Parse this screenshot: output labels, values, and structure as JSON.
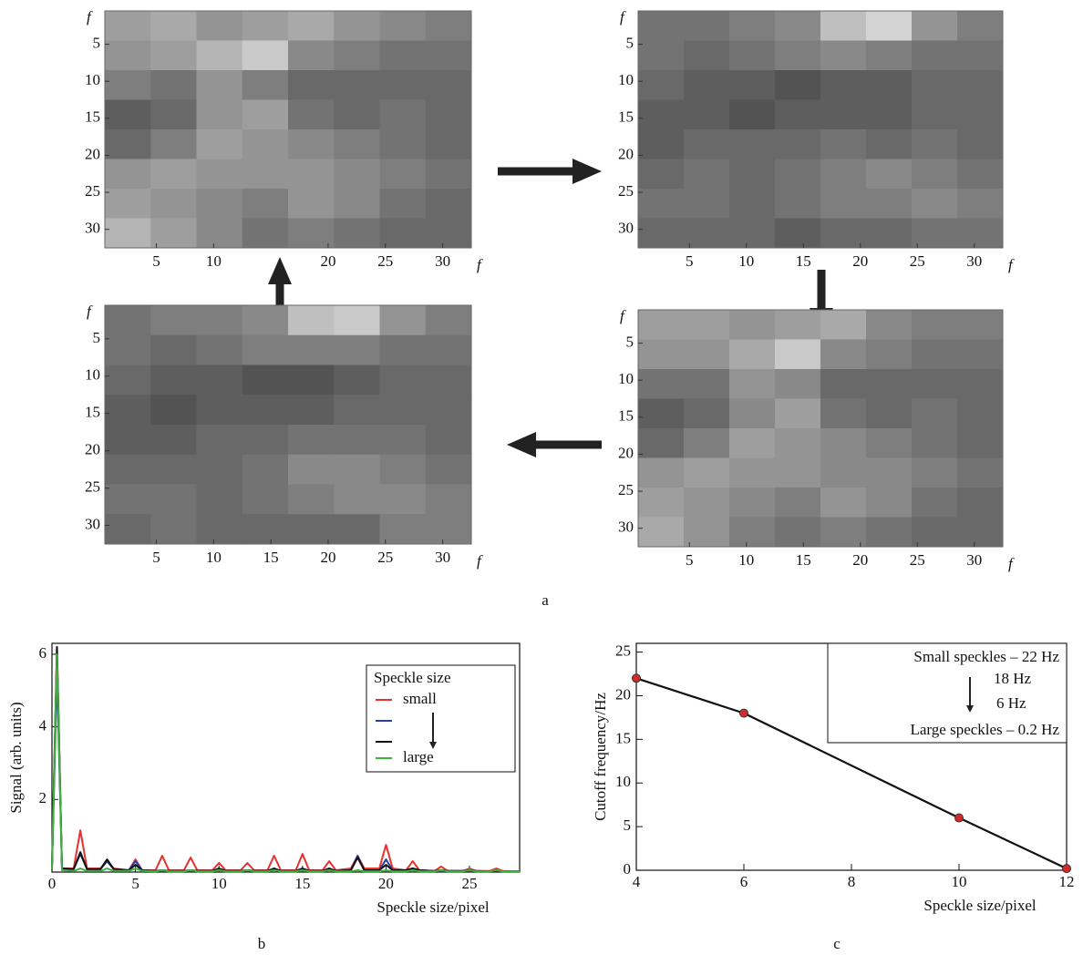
{
  "captions": [
    "a",
    "b",
    "c"
  ],
  "chart_data": [
    {
      "type": "heatmap",
      "xlabel": "f",
      "ylabel": "f",
      "xlim": [
        0.5,
        32.5
      ],
      "ylim": [
        0.5,
        32.5
      ],
      "xticks": [
        5,
        10,
        20,
        25,
        30
      ],
      "yticks": [
        5,
        10,
        15,
        20,
        25,
        30
      ],
      "z": [
        [
          0.55,
          0.6,
          0.5,
          0.55,
          0.6,
          0.5,
          0.45,
          0.4
        ],
        [
          0.5,
          0.55,
          0.65,
          0.75,
          0.45,
          0.4,
          0.35,
          0.35
        ],
        [
          0.4,
          0.35,
          0.5,
          0.4,
          0.3,
          0.3,
          0.3,
          0.3
        ],
        [
          0.25,
          0.3,
          0.5,
          0.55,
          0.35,
          0.3,
          0.35,
          0.3
        ],
        [
          0.3,
          0.4,
          0.55,
          0.5,
          0.45,
          0.4,
          0.35,
          0.3
        ],
        [
          0.5,
          0.55,
          0.5,
          0.5,
          0.5,
          0.45,
          0.4,
          0.35
        ],
        [
          0.55,
          0.5,
          0.45,
          0.4,
          0.5,
          0.45,
          0.35,
          0.3
        ],
        [
          0.65,
          0.55,
          0.45,
          0.35,
          0.4,
          0.35,
          0.3,
          0.3
        ]
      ]
    },
    {
      "type": "heatmap",
      "xlabel": "f",
      "ylabel": "f",
      "xlim": [
        0.5,
        32.5
      ],
      "ylim": [
        0.5,
        32.5
      ],
      "xticks": [
        5,
        10,
        15,
        20,
        25,
        30
      ],
      "yticks": [
        5,
        10,
        15,
        20,
        25,
        30
      ],
      "z": [
        [
          0.35,
          0.35,
          0.4,
          0.45,
          0.7,
          0.8,
          0.5,
          0.4
        ],
        [
          0.35,
          0.3,
          0.35,
          0.4,
          0.45,
          0.4,
          0.35,
          0.35
        ],
        [
          0.3,
          0.25,
          0.25,
          0.2,
          0.25,
          0.25,
          0.3,
          0.3
        ],
        [
          0.25,
          0.25,
          0.2,
          0.25,
          0.25,
          0.25,
          0.3,
          0.3
        ],
        [
          0.25,
          0.3,
          0.3,
          0.3,
          0.35,
          0.3,
          0.35,
          0.3
        ],
        [
          0.3,
          0.35,
          0.3,
          0.35,
          0.4,
          0.45,
          0.4,
          0.35
        ],
        [
          0.35,
          0.35,
          0.3,
          0.35,
          0.4,
          0.4,
          0.45,
          0.4
        ],
        [
          0.3,
          0.3,
          0.3,
          0.25,
          0.3,
          0.3,
          0.35,
          0.35
        ]
      ]
    },
    {
      "type": "heatmap",
      "xlabel": "f",
      "ylabel": "f",
      "xlim": [
        0.5,
        32.5
      ],
      "ylim": [
        0.5,
        32.5
      ],
      "xticks": [
        5,
        10,
        15,
        20,
        25,
        30
      ],
      "yticks": [
        5,
        10,
        15,
        20,
        25,
        30
      ],
      "z": [
        [
          0.35,
          0.4,
          0.4,
          0.45,
          0.7,
          0.75,
          0.5,
          0.4
        ],
        [
          0.35,
          0.3,
          0.35,
          0.4,
          0.4,
          0.4,
          0.35,
          0.35
        ],
        [
          0.3,
          0.25,
          0.25,
          0.2,
          0.2,
          0.25,
          0.3,
          0.3
        ],
        [
          0.25,
          0.2,
          0.25,
          0.25,
          0.25,
          0.3,
          0.3,
          0.3
        ],
        [
          0.25,
          0.25,
          0.3,
          0.3,
          0.35,
          0.35,
          0.35,
          0.3
        ],
        [
          0.3,
          0.3,
          0.3,
          0.35,
          0.45,
          0.45,
          0.4,
          0.35
        ],
        [
          0.35,
          0.35,
          0.3,
          0.35,
          0.4,
          0.45,
          0.45,
          0.4
        ],
        [
          0.3,
          0.35,
          0.3,
          0.3,
          0.3,
          0.3,
          0.4,
          0.4
        ]
      ]
    },
    {
      "type": "heatmap",
      "xlabel": "f",
      "ylabel": "f",
      "xlim": [
        0.5,
        32.5
      ],
      "ylim": [
        0.5,
        32.5
      ],
      "xticks": [
        5,
        10,
        15,
        20,
        25,
        30
      ],
      "yticks": [
        5,
        10,
        15,
        20,
        25,
        30
      ],
      "z": [
        [
          0.55,
          0.55,
          0.5,
          0.55,
          0.6,
          0.45,
          0.4,
          0.4
        ],
        [
          0.5,
          0.5,
          0.6,
          0.75,
          0.45,
          0.4,
          0.35,
          0.35
        ],
        [
          0.35,
          0.35,
          0.5,
          0.45,
          0.3,
          0.3,
          0.3,
          0.3
        ],
        [
          0.25,
          0.3,
          0.45,
          0.55,
          0.35,
          0.3,
          0.35,
          0.3
        ],
        [
          0.3,
          0.4,
          0.55,
          0.5,
          0.45,
          0.4,
          0.35,
          0.3
        ],
        [
          0.5,
          0.55,
          0.5,
          0.5,
          0.45,
          0.45,
          0.4,
          0.35
        ],
        [
          0.55,
          0.5,
          0.45,
          0.4,
          0.5,
          0.45,
          0.35,
          0.3
        ],
        [
          0.6,
          0.5,
          0.4,
          0.35,
          0.4,
          0.35,
          0.3,
          0.3
        ]
      ]
    },
    {
      "type": "line",
      "xlabel": "Speckle size/pixel",
      "ylabel": "Signal (arb. units)",
      "xlim": [
        0,
        28
      ],
      "ylim": [
        0,
        6.3
      ],
      "xticks": [
        0,
        5,
        10,
        15,
        20,
        25
      ],
      "yticks": [
        2,
        4,
        6
      ],
      "legend_title": "Speckle size",
      "legend": "upper right",
      "x": [
        0,
        0.3,
        0.6,
        1.3,
        1.7,
        2.1,
        2.9,
        3.3,
        3.7,
        4.6,
        5,
        5.4,
        6.2,
        6.6,
        7,
        7.9,
        8.3,
        8.7,
        9.6,
        10,
        10.4,
        11.3,
        11.7,
        12.1,
        12.9,
        13.3,
        13.7,
        14.6,
        15,
        15.4,
        16.2,
        16.6,
        17,
        17.9,
        18.3,
        18.7,
        19.6,
        20,
        20.4,
        21.2,
        21.6,
        22,
        22.9,
        23.3,
        23.7,
        24.6,
        25,
        25.4,
        26.2,
        26.6,
        27,
        28
      ],
      "series": [
        {
          "name": "small",
          "color": "#e8312f",
          "values": [
            0.1,
            6.2,
            0.1,
            0.1,
            1.15,
            0.1,
            0.1,
            0.3,
            0.1,
            0.05,
            0.35,
            0.05,
            0.05,
            0.45,
            0.05,
            0.05,
            0.4,
            0.05,
            0.05,
            0.25,
            0.05,
            0.05,
            0.25,
            0.05,
            0.05,
            0.45,
            0.05,
            0.05,
            0.5,
            0.05,
            0.05,
            0.3,
            0.05,
            0.1,
            0.45,
            0.1,
            0.1,
            0.75,
            0.1,
            0.05,
            0.3,
            0.05,
            0.03,
            0.15,
            0.03,
            0.03,
            0.1,
            0.03,
            0.03,
            0.1,
            0.03,
            0.02
          ]
        },
        {
          "name": null,
          "color": "#2b3f9e",
          "values": [
            0.1,
            5.5,
            0.1,
            0.08,
            0.5,
            0.08,
            0.08,
            0.3,
            0.08,
            0.05,
            0.3,
            0.05,
            0.03,
            0.05,
            0.03,
            0.03,
            0.05,
            0.03,
            0.03,
            0.1,
            0.03,
            0.03,
            0.05,
            0.03,
            0.03,
            0.1,
            0.03,
            0.03,
            0.1,
            0.03,
            0.03,
            0.1,
            0.03,
            0.05,
            0.45,
            0.05,
            0.05,
            0.35,
            0.05,
            0.05,
            0.1,
            0.05,
            0.03,
            0.05,
            0.03,
            0.03,
            0.05,
            0.03,
            0.02,
            0.03,
            0.02,
            0.02
          ]
        },
        {
          "name": null,
          "color": "#111111",
          "values": [
            0.1,
            6.2,
            0.1,
            0.08,
            0.55,
            0.08,
            0.08,
            0.35,
            0.08,
            0.05,
            0.2,
            0.05,
            0.03,
            0.05,
            0.03,
            0.03,
            0.05,
            0.03,
            0.03,
            0.1,
            0.03,
            0.03,
            0.05,
            0.03,
            0.03,
            0.1,
            0.03,
            0.03,
            0.1,
            0.03,
            0.03,
            0.1,
            0.03,
            0.05,
            0.4,
            0.05,
            0.05,
            0.2,
            0.05,
            0.05,
            0.1,
            0.05,
            0.03,
            0.05,
            0.03,
            0.03,
            0.05,
            0.03,
            0.02,
            0.03,
            0.02,
            0.02
          ]
        },
        {
          "name": "large",
          "color": "#3cb33c",
          "values": [
            0.1,
            6,
            0.05,
            0.03,
            0.1,
            0.03,
            0.03,
            0.1,
            0.03,
            0.03,
            0.1,
            0.03,
            0.02,
            0.05,
            0.02,
            0.02,
            0.05,
            0.02,
            0.02,
            0.05,
            0.02,
            0.02,
            0.05,
            0.02,
            0.02,
            0.05,
            0.02,
            0.02,
            0.05,
            0.02,
            0.02,
            0.05,
            0.02,
            0.02,
            0.05,
            0.02,
            0.02,
            0.05,
            0.02,
            0.02,
            0.05,
            0.02,
            0.02,
            0.05,
            0.02,
            0.02,
            0.05,
            0.02,
            0.02,
            0.05,
            0.02,
            0.02
          ]
        }
      ]
    },
    {
      "type": "line",
      "xlabel": "Speckle size/pixel",
      "ylabel": "Cutoff frequency/Hz",
      "xlim": [
        4,
        12
      ],
      "ylim": [
        0,
        26
      ],
      "xticks": [
        4,
        6,
        8,
        10,
        12
      ],
      "yticks": [
        0,
        5,
        10,
        15,
        20,
        25
      ],
      "x": [
        4,
        6,
        10,
        12
      ],
      "values": [
        22,
        18,
        6,
        0.2
      ],
      "color": "#111111",
      "marker_color": "#d42a2a",
      "annotations": [
        "Small speckles – 22 Hz",
        "18 Hz",
        "6 Hz",
        "Large speckles – 0.2 Hz"
      ]
    }
  ]
}
